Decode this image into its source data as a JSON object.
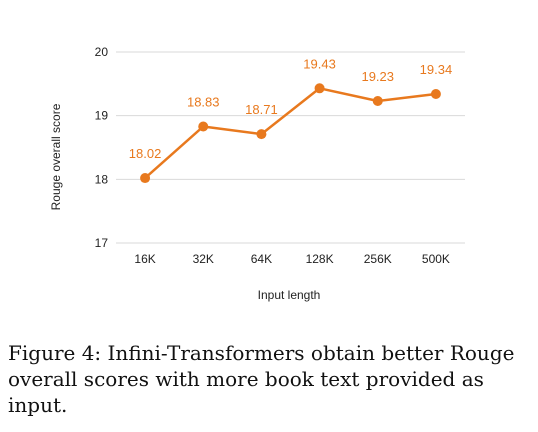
{
  "chart_data": {
    "type": "line",
    "categories": [
      "16K",
      "32K",
      "64K",
      "128K",
      "256K",
      "500K"
    ],
    "series": [
      {
        "values": [
          18.02,
          18.83,
          18.71,
          19.43,
          19.23,
          19.34
        ],
        "color": "#e8791e"
      }
    ],
    "data_labels": [
      "18.02",
      "18.83",
      "18.71",
      "19.43",
      "19.23",
      "19.34"
    ],
    "ylim": [
      17,
      20
    ],
    "yticks": [
      17,
      18,
      19,
      20
    ],
    "xlabel": "Input length",
    "ylabel": "Rouge overall score",
    "grid": true,
    "legend": "none"
  },
  "caption": "Figure 4: Infini-Transformers obtain better Rouge overall scores with more book text provided as input."
}
